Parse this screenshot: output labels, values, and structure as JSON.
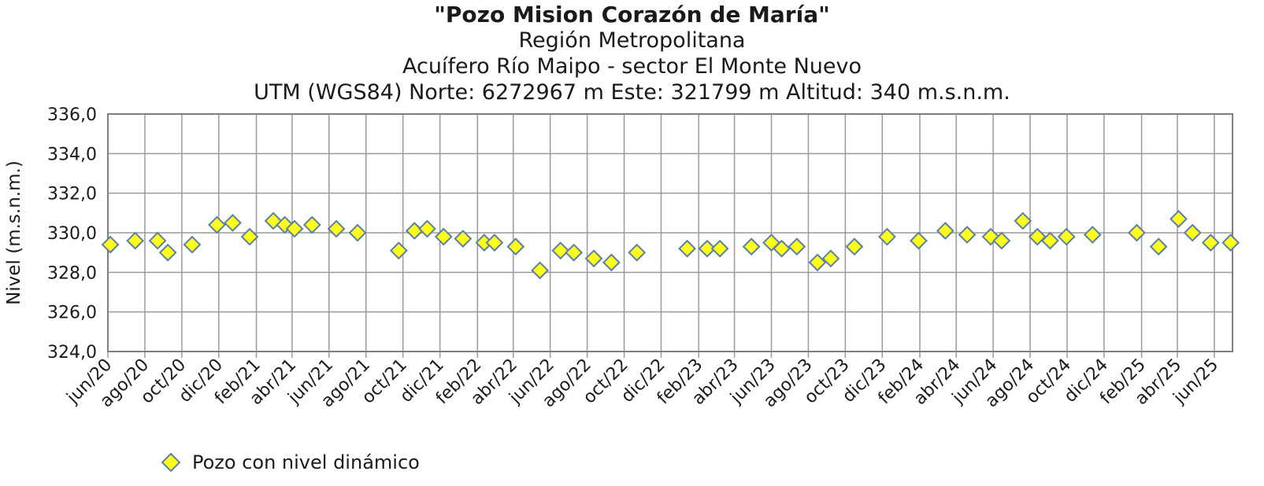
{
  "chart_data": {
    "type": "scatter",
    "title": "\"Pozo Mision Corazón de María\"",
    "subtitles": [
      "Región Metropolitana",
      "Acuífero Río Maipo - sector El Monte Nuevo",
      "UTM (WGS84) Norte: 6272967 m Este: 321799 m   Altitud: 340 m.s.n.m."
    ],
    "ylabel": "Nivel (m.s.n.m.)",
    "xlabel": "",
    "ylim": [
      324,
      336
    ],
    "yticks": [
      "324,0",
      "326,0",
      "328,0",
      "330,0",
      "332,0",
      "334,0",
      "336,0"
    ],
    "xlim": [
      "2020-06-01",
      "2025-07-01"
    ],
    "xticks": [
      {
        "date": "2020-06-01",
        "label": "jun/20"
      },
      {
        "date": "2020-08-01",
        "label": "ago/20"
      },
      {
        "date": "2020-10-01",
        "label": "oct/20"
      },
      {
        "date": "2020-12-01",
        "label": "dic/20"
      },
      {
        "date": "2021-02-01",
        "label": "feb/21"
      },
      {
        "date": "2021-04-01",
        "label": "abr/21"
      },
      {
        "date": "2021-06-01",
        "label": "jun/21"
      },
      {
        "date": "2021-08-01",
        "label": "ago/21"
      },
      {
        "date": "2021-10-01",
        "label": "oct/21"
      },
      {
        "date": "2021-12-01",
        "label": "dic/21"
      },
      {
        "date": "2022-02-01",
        "label": "feb/22"
      },
      {
        "date": "2022-04-01",
        "label": "abr/22"
      },
      {
        "date": "2022-06-01",
        "label": "jun/22"
      },
      {
        "date": "2022-08-01",
        "label": "ago/22"
      },
      {
        "date": "2022-10-01",
        "label": "oct/22"
      },
      {
        "date": "2022-12-01",
        "label": "dic/22"
      },
      {
        "date": "2023-02-01",
        "label": "feb/23"
      },
      {
        "date": "2023-04-01",
        "label": "abr/23"
      },
      {
        "date": "2023-06-01",
        "label": "jun/23"
      },
      {
        "date": "2023-08-01",
        "label": "ago/23"
      },
      {
        "date": "2023-10-01",
        "label": "oct/23"
      },
      {
        "date": "2023-12-01",
        "label": "dic/23"
      },
      {
        "date": "2024-02-01",
        "label": "feb/24"
      },
      {
        "date": "2024-04-01",
        "label": "abr/24"
      },
      {
        "date": "2024-06-01",
        "label": "jun/24"
      },
      {
        "date": "2024-08-01",
        "label": "ago/24"
      },
      {
        "date": "2024-10-01",
        "label": "oct/24"
      },
      {
        "date": "2024-12-01",
        "label": "dic/24"
      },
      {
        "date": "2025-02-01",
        "label": "feb/25"
      },
      {
        "date": "2025-04-01",
        "label": "abr/25"
      },
      {
        "date": "2025-06-01",
        "label": "jun/25"
      }
    ],
    "grid": true,
    "legend_position": "bottom-left",
    "series": [
      {
        "name": "Pozo con nivel dinámico",
        "marker": "diamond",
        "fill_color": "#ffff1a",
        "edge_color": "#5b7fa6",
        "points": [
          {
            "x": "2020-06-05",
            "y": 329.4
          },
          {
            "x": "2020-07-16",
            "y": 329.6
          },
          {
            "x": "2020-08-22",
            "y": 329.6
          },
          {
            "x": "2020-09-08",
            "y": 329.0
          },
          {
            "x": "2020-10-18",
            "y": 329.4
          },
          {
            "x": "2020-11-28",
            "y": 330.4
          },
          {
            "x": "2020-12-24",
            "y": 330.5
          },
          {
            "x": "2021-01-21",
            "y": 329.8
          },
          {
            "x": "2021-03-01",
            "y": 330.6
          },
          {
            "x": "2021-03-20",
            "y": 330.4
          },
          {
            "x": "2021-04-05",
            "y": 330.2
          },
          {
            "x": "2021-05-04",
            "y": 330.4
          },
          {
            "x": "2021-06-13",
            "y": 330.2
          },
          {
            "x": "2021-07-18",
            "y": 330.0
          },
          {
            "x": "2021-09-24",
            "y": 329.1
          },
          {
            "x": "2021-10-20",
            "y": 330.1
          },
          {
            "x": "2021-11-10",
            "y": 330.2
          },
          {
            "x": "2021-12-07",
            "y": 329.8
          },
          {
            "x": "2022-01-08",
            "y": 329.7
          },
          {
            "x": "2022-02-12",
            "y": 329.5
          },
          {
            "x": "2022-03-01",
            "y": 329.5
          },
          {
            "x": "2022-04-05",
            "y": 329.3
          },
          {
            "x": "2022-05-15",
            "y": 328.1
          },
          {
            "x": "2022-06-18",
            "y": 329.1
          },
          {
            "x": "2022-07-10",
            "y": 329.0
          },
          {
            "x": "2022-08-12",
            "y": 328.7
          },
          {
            "x": "2022-09-10",
            "y": 328.5
          },
          {
            "x": "2022-10-22",
            "y": 329.0
          },
          {
            "x": "2023-01-13",
            "y": 329.2
          },
          {
            "x": "2023-02-15",
            "y": 329.2
          },
          {
            "x": "2023-03-08",
            "y": 329.2
          },
          {
            "x": "2023-04-29",
            "y": 329.3
          },
          {
            "x": "2023-06-01",
            "y": 329.5
          },
          {
            "x": "2023-06-18",
            "y": 329.2
          },
          {
            "x": "2023-07-13",
            "y": 329.3
          },
          {
            "x": "2023-08-16",
            "y": 328.5
          },
          {
            "x": "2023-09-07",
            "y": 328.7
          },
          {
            "x": "2023-10-16",
            "y": 329.3
          },
          {
            "x": "2023-12-09",
            "y": 329.8
          },
          {
            "x": "2024-01-30",
            "y": 329.6
          },
          {
            "x": "2024-03-14",
            "y": 330.1
          },
          {
            "x": "2024-04-19",
            "y": 329.9
          },
          {
            "x": "2024-05-28",
            "y": 329.8
          },
          {
            "x": "2024-06-15",
            "y": 329.6
          },
          {
            "x": "2024-07-20",
            "y": 330.6
          },
          {
            "x": "2024-08-13",
            "y": 329.8
          },
          {
            "x": "2024-09-03",
            "y": 329.6
          },
          {
            "x": "2024-09-30",
            "y": 329.8
          },
          {
            "x": "2024-11-12",
            "y": 329.9
          },
          {
            "x": "2025-01-24",
            "y": 330.0
          },
          {
            "x": "2025-03-01",
            "y": 329.3
          },
          {
            "x": "2025-04-03",
            "y": 330.7
          },
          {
            "x": "2025-04-26",
            "y": 330.0
          },
          {
            "x": "2025-05-26",
            "y": 329.5
          },
          {
            "x": "2025-06-28",
            "y": 329.5
          }
        ]
      }
    ]
  }
}
